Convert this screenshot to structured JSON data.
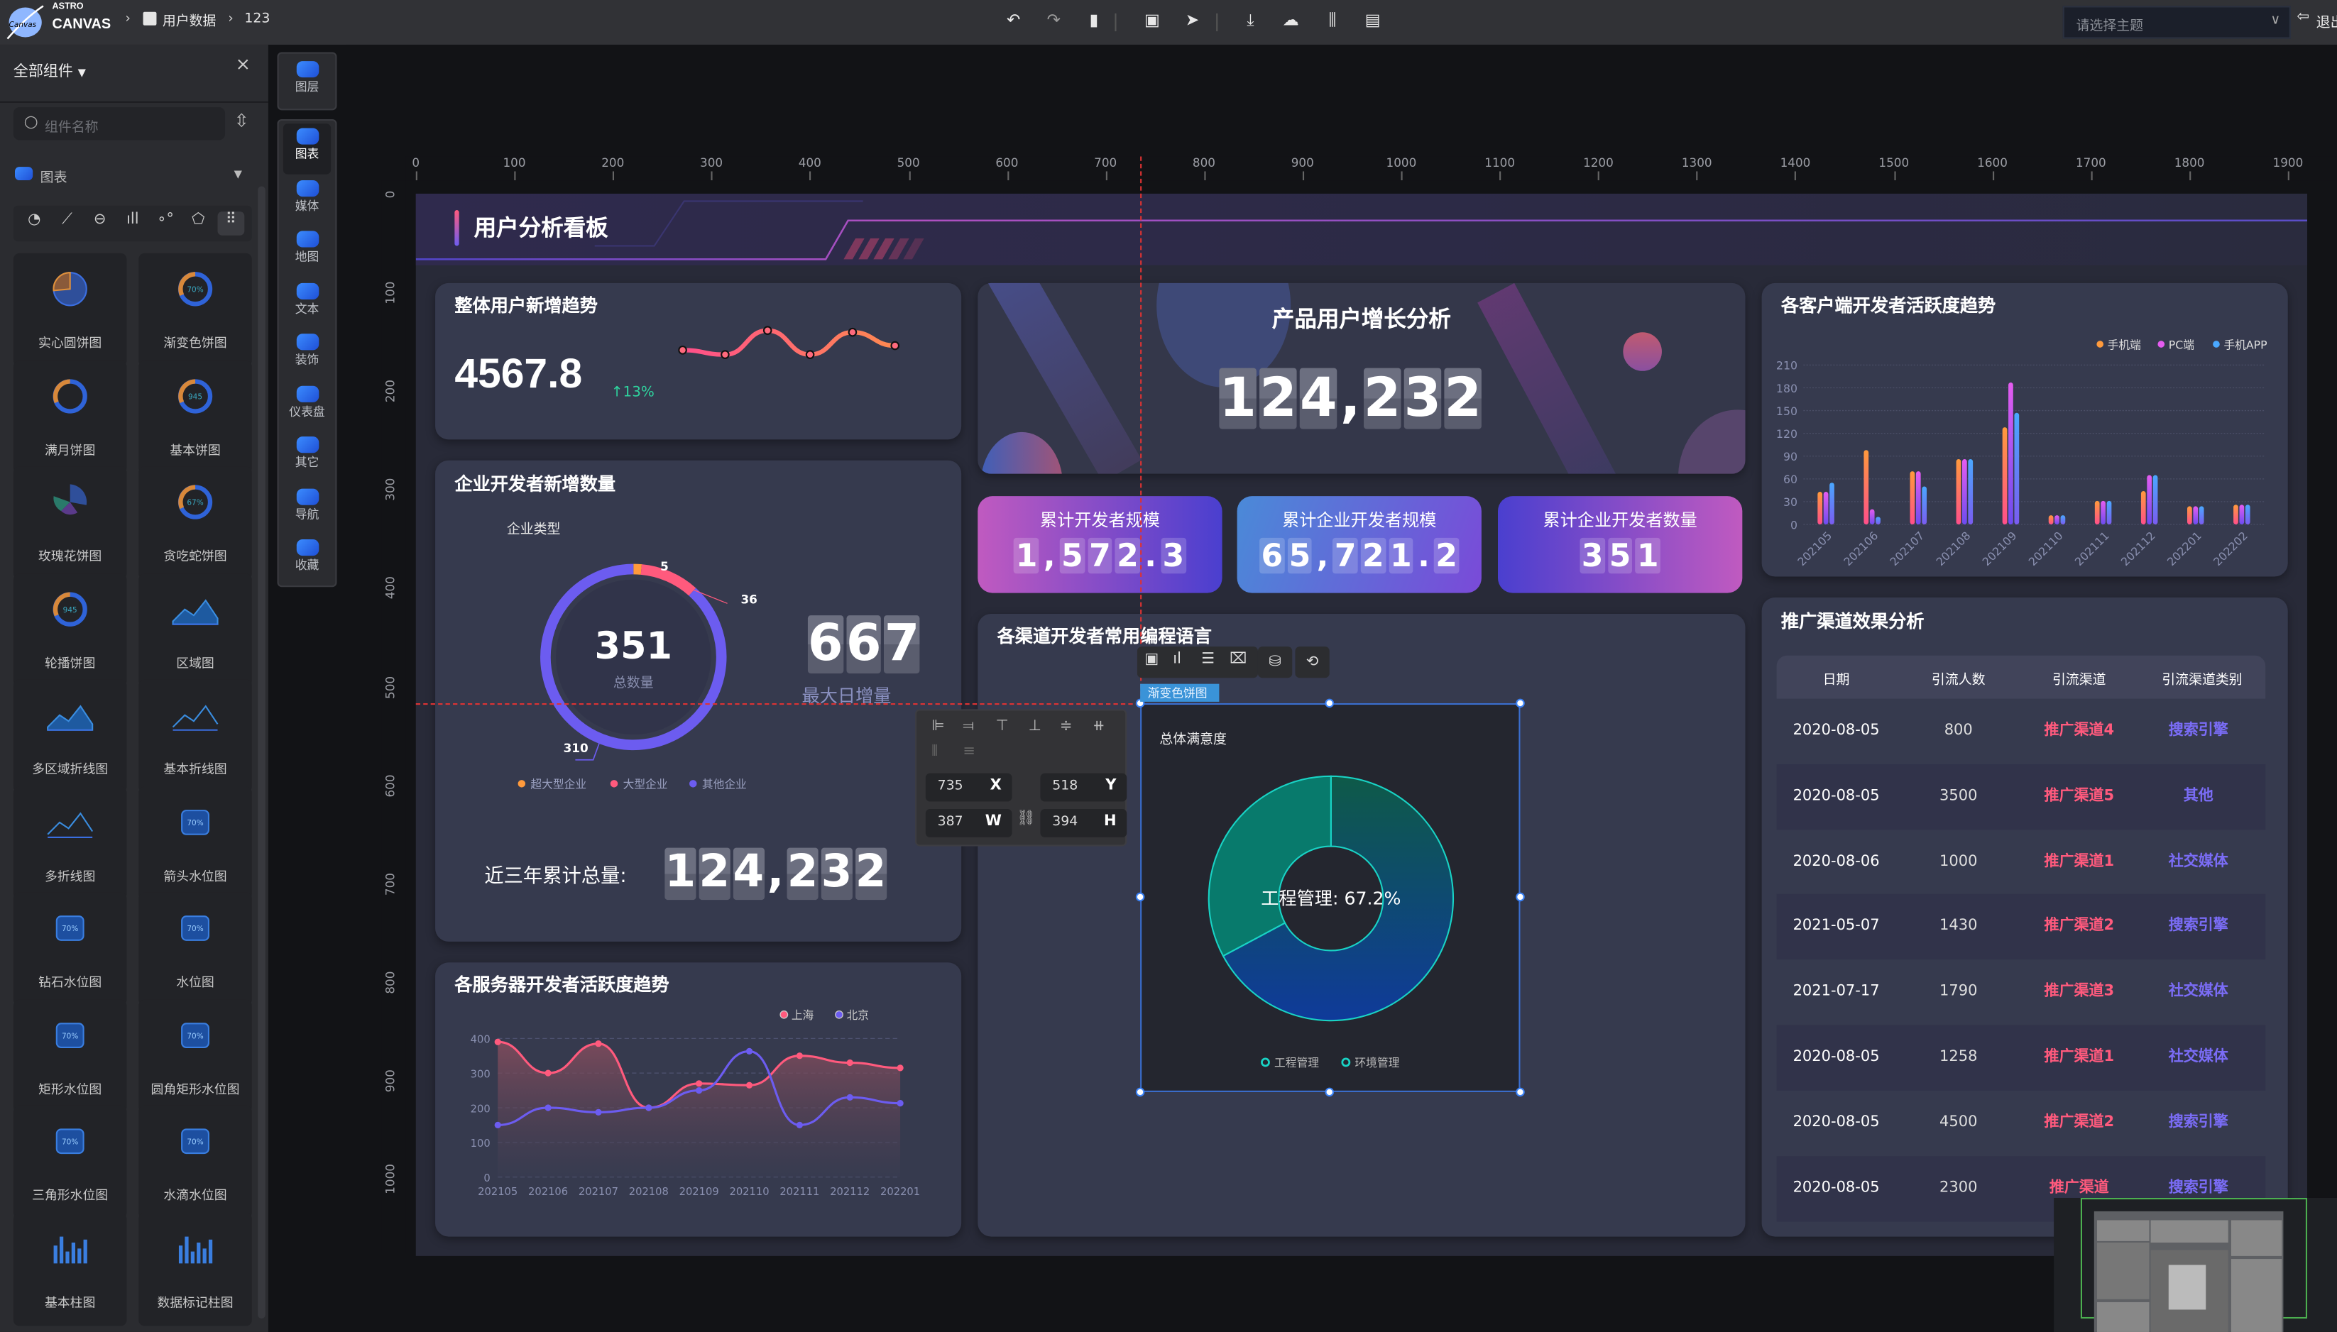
{
  "app": {
    "logo_top": "ASTRO",
    "logo_bottom": "CANVAS",
    "logo_badge": "Canvas",
    "breadcrumb": [
      "用户数据",
      "123"
    ]
  },
  "toolbar": {
    "icons": [
      "undo-icon",
      "redo-icon",
      "save-icon",
      "preview-icon",
      "publish-icon",
      "download-icon",
      "upload-icon",
      "settings-sliders-icon",
      "export-icon"
    ],
    "theme_placeholder": "请选择主题",
    "exit_label": "退出"
  },
  "sidebar": {
    "header": "全部组件",
    "search_placeholder": "组件名称",
    "category": "图表",
    "filter_icons": [
      "pie-filter-icon",
      "line-filter-icon",
      "water-filter-icon",
      "bar-filter-icon",
      "scatter-filter-icon",
      "radar-filter-icon",
      "all-filter-icon"
    ],
    "components": [
      {
        "label": "实心圆饼图",
        "icon": "pie"
      },
      {
        "label": "渐变色饼图",
        "icon": "ring",
        "text": "70%"
      },
      {
        "label": "满月饼图",
        "icon": "ring"
      },
      {
        "label": "基本饼图",
        "icon": "ring",
        "text": "945"
      },
      {
        "label": "玫瑰花饼图",
        "icon": "rose"
      },
      {
        "label": "贪吃蛇饼图",
        "icon": "ring",
        "text": "67%"
      },
      {
        "label": "轮播饼图",
        "icon": "ring",
        "text": "945"
      },
      {
        "label": "区域图",
        "icon": "area"
      },
      {
        "label": "多区域折线图",
        "icon": "area"
      },
      {
        "label": "基本折线图",
        "icon": "line"
      },
      {
        "label": "多折线图",
        "icon": "line"
      },
      {
        "label": "箭头水位图",
        "icon": "water",
        "text": "70%"
      },
      {
        "label": "钻石水位图",
        "icon": "water",
        "text": "70%"
      },
      {
        "label": "水位图",
        "icon": "water",
        "text": "70%"
      },
      {
        "label": "矩形水位图",
        "icon": "water",
        "text": "70%"
      },
      {
        "label": "圆角矩形水位图",
        "icon": "water",
        "text": "70%"
      },
      {
        "label": "三角形水位图",
        "icon": "water",
        "text": "70%"
      },
      {
        "label": "水滴水位图",
        "icon": "water",
        "text": "70%"
      },
      {
        "label": "基本柱图",
        "icon": "bar"
      },
      {
        "label": "数据标记柱图",
        "icon": "bar"
      }
    ]
  },
  "iconbar": {
    "layers": "图层",
    "items": [
      "图表",
      "媒体",
      "地图",
      "文本",
      "装饰",
      "仪表盘",
      "其它",
      "导航",
      "收藏"
    ]
  },
  "ruler": {
    "h": [
      0,
      100,
      200,
      300,
      400,
      500,
      600,
      700,
      800,
      900,
      1000,
      1100,
      1200,
      1300,
      1400,
      1500,
      1600,
      1700,
      1800,
      1900
    ],
    "v": [
      0,
      100,
      200,
      300,
      400,
      500,
      600,
      700,
      800,
      900,
      1000
    ]
  },
  "board": {
    "title": "用户分析看板",
    "trend": {
      "title": "整体用户新增趋势",
      "value": "4567.8",
      "change": "13%"
    },
    "growth": {
      "title": "产品用户增长分析",
      "value": "124,232"
    },
    "pills": [
      {
        "label": "累计开发者规模",
        "value": "1,572.3"
      },
      {
        "label": "累计企业开发者规模",
        "value": "65,721.2"
      },
      {
        "label": "累计企业开发者数量",
        "value": "351"
      }
    ],
    "enterprise": {
      "title": "企业开发者新增数量",
      "subtitle": "企业类型",
      "center_value": "351",
      "center_label": "总数量",
      "max_value": "667",
      "max_label": "最大日增量",
      "total_label": "近三年累计总量:",
      "total_value": "124,232"
    },
    "language": {
      "title": "各渠道开发者常用编程语言"
    },
    "server": {
      "title": "各服务器开发者活跃度趋势"
    },
    "client": {
      "title": "各客户端开发者活跃度趋势"
    },
    "table": {
      "title": "推广渠道效果分析",
      "headers": [
        "日期",
        "引流人数",
        "引流渠道",
        "引流渠道类别"
      ],
      "rows": [
        [
          "2020-08-05",
          "800",
          "推广渠道4",
          "搜索引擎"
        ],
        [
          "2020-08-05",
          "3500",
          "推广渠道5",
          "其他"
        ],
        [
          "2020-08-06",
          "1000",
          "推广渠道1",
          "社交媒体"
        ],
        [
          "2021-05-07",
          "1430",
          "推广渠道2",
          "搜索引擎"
        ],
        [
          "2021-07-17",
          "1790",
          "推广渠道3",
          "社交媒体"
        ],
        [
          "2020-08-05",
          "1258",
          "推广渠道1",
          "社交媒体"
        ],
        [
          "2020-08-05",
          "4500",
          "推广渠道2",
          "搜索引擎"
        ],
        [
          "2020-08-05",
          "2300",
          "推广渠道",
          "搜索引擎"
        ]
      ]
    }
  },
  "selection": {
    "tag": "渐变色饼图",
    "title": "总体满意度",
    "x": "735",
    "y": "518",
    "w": "387",
    "h": "394",
    "x_key": "X",
    "y_key": "Y",
    "w_key": "W",
    "h_key": "H"
  },
  "colors": {
    "pink": "#ff5a7d",
    "purple": "#6c5cf0",
    "orange": "#ff9a3c",
    "teal": "#19d3c5",
    "accent_blue": "#3b82f6"
  },
  "chart_data": [
    {
      "type": "line",
      "name": "trend-sparkline",
      "values": [
        40,
        35,
        62,
        35,
        60,
        45
      ]
    },
    {
      "type": "pie",
      "name": "enterprise-ring",
      "title": "企业类型",
      "labels": [
        "超大型企业",
        "大型企业",
        "其他企业"
      ],
      "values": [
        5,
        36,
        310
      ],
      "colors": [
        "#ff9a3c",
        "#ff5a7d",
        "#6c5cf0"
      ]
    },
    {
      "type": "bar",
      "name": "client-activity",
      "title": "各客户端开发者活跃度趋势",
      "categories": [
        "202105",
        "202106",
        "202107",
        "202108",
        "202109",
        "202110",
        "202111",
        "202112",
        "202201",
        "202202"
      ],
      "series": [
        {
          "name": "手机端",
          "values": [
            43,
            98,
            70,
            86,
            128,
            12,
            31,
            44,
            24,
            26
          ]
        },
        {
          "name": "PC端",
          "values": [
            43,
            20,
            70,
            86,
            187,
            12,
            31,
            65,
            24,
            26
          ]
        },
        {
          "name": "手机APP",
          "values": [
            55,
            10,
            50,
            86,
            147,
            12,
            31,
            65,
            24,
            26
          ]
        }
      ],
      "ylim": [
        0,
        210
      ],
      "yticks": [
        0,
        30,
        60,
        90,
        120,
        150,
        180,
        210
      ],
      "legend": "top-right"
    },
    {
      "type": "area",
      "name": "server-activity",
      "title": "各服务器开发者活跃度趋势",
      "categories": [
        "202105",
        "202106",
        "202107",
        "202108",
        "202109",
        "202110",
        "202111",
        "202112",
        "202201"
      ],
      "series": [
        {
          "name": "上海",
          "values": [
            390,
            300,
            385,
            200,
            270,
            265,
            350,
            330,
            315
          ]
        },
        {
          "name": "北京",
          "values": [
            150,
            200,
            187,
            200,
            250,
            363,
            150,
            230,
            213
          ]
        }
      ],
      "ylim": [
        0,
        400
      ],
      "yticks": [
        0,
        100,
        200,
        300,
        400
      ],
      "legend": "top-right"
    },
    {
      "type": "pie",
      "name": "satisfaction-donut",
      "title": "总体满意度",
      "labels": [
        "工程管理",
        "环境管理"
      ],
      "values": [
        67.2,
        32.8
      ],
      "center_text": "工程管理: 67.2%"
    }
  ]
}
